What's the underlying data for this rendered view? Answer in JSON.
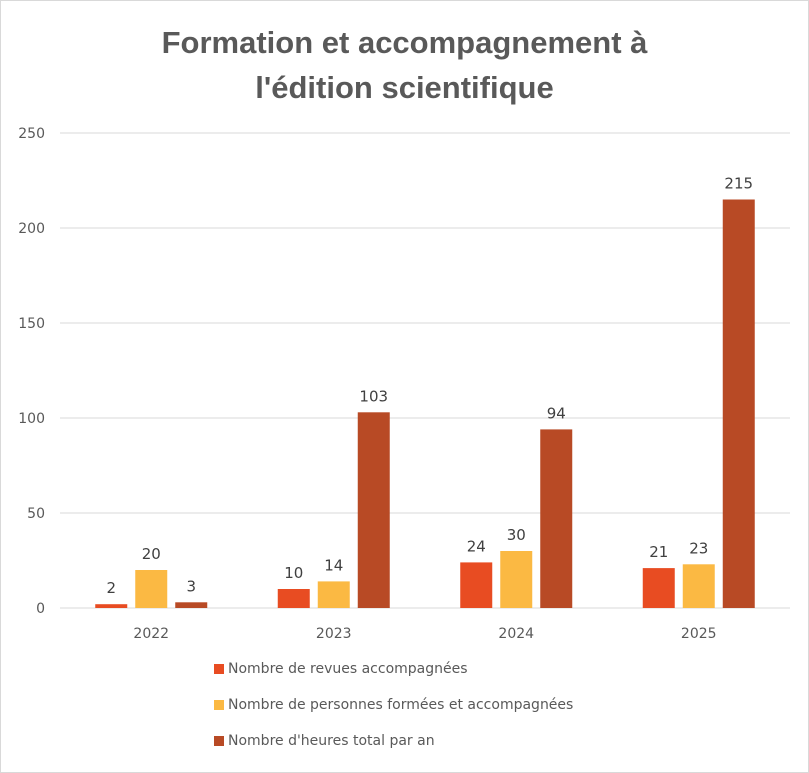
{
  "chart_data": {
    "type": "bar",
    "title_lines": [
      "Formation et accompagnement à",
      "l'édition scientifique"
    ],
    "categories": [
      "2022",
      "2023",
      "2024",
      "2025"
    ],
    "series": [
      {
        "name": "Nombre de revues accompagnées",
        "color": "#e84c22",
        "values": [
          2,
          10,
          24,
          21
        ]
      },
      {
        "name": "Nombre de personnes formées et accompagnées",
        "color": "#fbb943",
        "values": [
          20,
          14,
          30,
          23
        ]
      },
      {
        "name": "Nombre d'heures total par an",
        "color": "#b84a25",
        "values": [
          3,
          103,
          94,
          215
        ]
      }
    ],
    "ylim": [
      0,
      250
    ],
    "yticks": [
      0,
      50,
      100,
      150,
      200,
      250
    ],
    "grid": true,
    "legend_position": "bottom",
    "data_labels": true
  }
}
